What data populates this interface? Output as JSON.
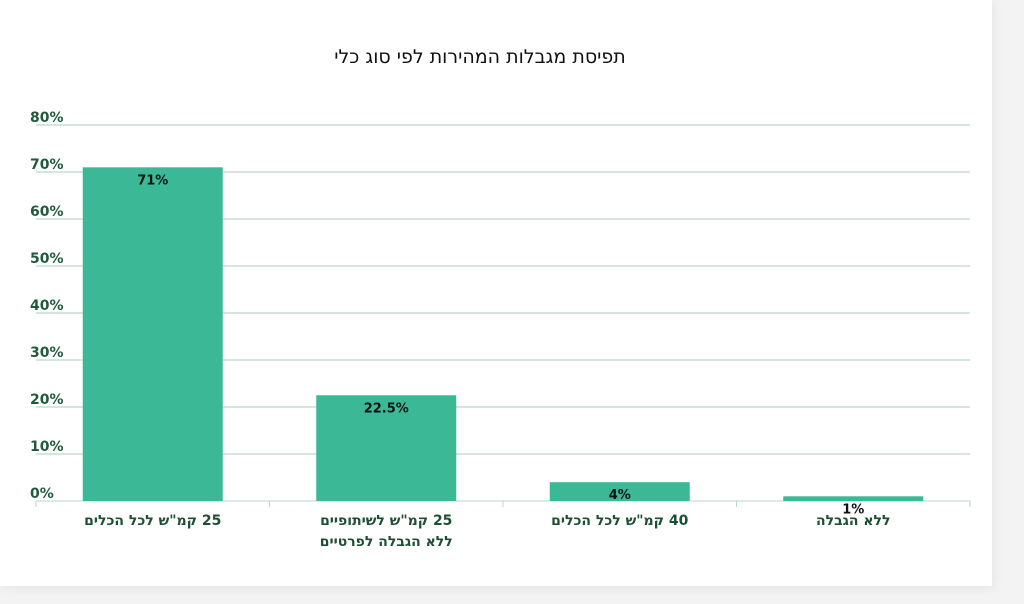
{
  "chart_data": {
    "type": "bar",
    "title": "תפיסת מגבלות המהירות לפי סוג כלי",
    "categories": [
      [
        "25 קמ\"ש לכל הכלים"
      ],
      [
        "25 קמ\"ש לשיתופיים",
        "ללא הגבלה לפרטיים"
      ],
      [
        "40 קמ\"ש לכל הכלים"
      ],
      [
        "ללא הגבלה"
      ]
    ],
    "values": [
      71,
      22.5,
      4,
      1
    ],
    "data_labels": [
      "71%",
      "22.5%",
      "4%",
      "1%"
    ],
    "yticks": [
      "0%",
      "10%",
      "20%",
      "30%",
      "40%",
      "50%",
      "60%",
      "70%",
      "80%"
    ],
    "ylim": [
      0,
      80
    ],
    "grid": true,
    "colors": {
      "bar": "#3bb896",
      "grid": "#a9cdbf",
      "tick_text": "#1f5a3c"
    }
  }
}
